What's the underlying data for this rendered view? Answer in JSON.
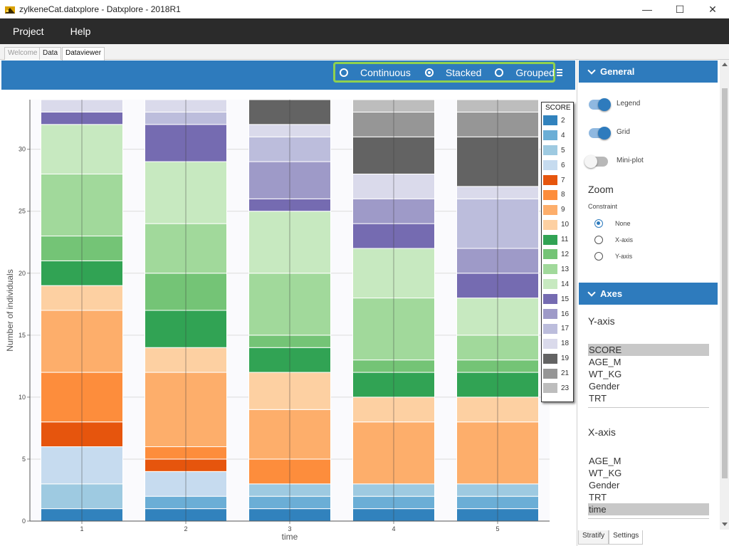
{
  "window": {
    "title": "zylkeneCat.datxplore - Datxplore - 2018R1",
    "controls": {
      "minimize": "—",
      "maximize": "☐",
      "close": "✕"
    }
  },
  "menu": {
    "items": [
      "Project",
      "Help"
    ]
  },
  "tabs": [
    {
      "label": "Welcome",
      "active": false
    },
    {
      "label": "Data",
      "active": false
    },
    {
      "label": "Dataviewer",
      "active": true
    }
  ],
  "toolbar": {
    "modes": [
      {
        "label": "Continuous",
        "selected": false
      },
      {
        "label": "Stacked",
        "selected": true
      },
      {
        "label": "Grouped",
        "selected": false
      }
    ],
    "menu_icon": "hamburger-menu-icon"
  },
  "chart_data": {
    "type": "bar",
    "stacked": true,
    "xlabel": "time",
    "ylabel": "Number of individuals",
    "categories": [
      "1",
      "2",
      "3",
      "4",
      "5"
    ],
    "ylim": [
      0,
      34
    ],
    "yticks": [
      0,
      5,
      10,
      15,
      20,
      25,
      30
    ],
    "grid": true,
    "legend_position": "right",
    "legend_title": "SCORE",
    "series": [
      {
        "name": "2",
        "color": "#3182bd",
        "values": [
          1,
          1,
          1,
          1,
          1
        ]
      },
      {
        "name": "4",
        "color": "#6baed6",
        "values": [
          0,
          1,
          1,
          1,
          1
        ]
      },
      {
        "name": "5",
        "color": "#9ecae1",
        "values": [
          2,
          0,
          1,
          1,
          1
        ]
      },
      {
        "name": "6",
        "color": "#c6dbef",
        "values": [
          3,
          2,
          0,
          0,
          0
        ]
      },
      {
        "name": "7",
        "color": "#e6550d",
        "values": [
          2,
          1,
          0,
          0,
          0
        ]
      },
      {
        "name": "8",
        "color": "#fd8d3c",
        "values": [
          4,
          1,
          2,
          0,
          0
        ]
      },
      {
        "name": "9",
        "color": "#fdae6b",
        "values": [
          5,
          6,
          4,
          5,
          5
        ]
      },
      {
        "name": "10",
        "color": "#fdd0a2",
        "values": [
          2,
          2,
          3,
          2,
          2
        ]
      },
      {
        "name": "11",
        "color": "#31a354",
        "values": [
          2,
          3,
          2,
          2,
          2
        ]
      },
      {
        "name": "12",
        "color": "#74c476",
        "values": [
          2,
          3,
          1,
          1,
          1
        ]
      },
      {
        "name": "13",
        "color": "#a1d99b",
        "values": [
          5,
          4,
          5,
          5,
          2
        ]
      },
      {
        "name": "14",
        "color": "#c7e9c0",
        "values": [
          4,
          5,
          5,
          4,
          3
        ]
      },
      {
        "name": "15",
        "color": "#756bb1",
        "values": [
          1,
          3,
          1,
          2,
          2
        ]
      },
      {
        "name": "16",
        "color": "#9e9ac8",
        "values": [
          0,
          0,
          3,
          2,
          2
        ]
      },
      {
        "name": "17",
        "color": "#bcbddc",
        "values": [
          0,
          1,
          2,
          0,
          4
        ]
      },
      {
        "name": "18",
        "color": "#dadaeb",
        "values": [
          1,
          1,
          1,
          2,
          1
        ]
      },
      {
        "name": "19",
        "color": "#636363",
        "values": [
          0,
          0,
          2,
          3,
          4
        ]
      },
      {
        "name": "21",
        "color": "#969696",
        "values": [
          0,
          0,
          0,
          2,
          2
        ]
      },
      {
        "name": "23",
        "color": "#bdbdbd",
        "values": [
          0,
          0,
          0,
          1,
          1
        ]
      }
    ]
  },
  "panel": {
    "general": {
      "title": "General",
      "toggles": [
        {
          "label": "Legend",
          "on": true
        },
        {
          "label": "Grid",
          "on": true
        },
        {
          "label": "Mini-plot",
          "on": false
        }
      ],
      "zoom_title": "Zoom",
      "constraint_label": "Constraint",
      "constraints": [
        {
          "label": "None",
          "selected": true
        },
        {
          "label": "X-axis",
          "selected": false
        },
        {
          "label": "Y-axis",
          "selected": false
        }
      ]
    },
    "axes": {
      "title": "Axes",
      "y_title": "Y-axis",
      "y_items": [
        {
          "label": "SCORE",
          "selected": true
        },
        {
          "label": "AGE_M",
          "selected": false
        },
        {
          "label": "WT_KG",
          "selected": false
        },
        {
          "label": "Gender",
          "selected": false
        },
        {
          "label": "TRT",
          "selected": false
        }
      ],
      "x_title": "X-axis",
      "x_items": [
        {
          "label": "AGE_M",
          "selected": false
        },
        {
          "label": "WT_KG",
          "selected": false
        },
        {
          "label": "Gender",
          "selected": false
        },
        {
          "label": "TRT",
          "selected": false
        },
        {
          "label": "time",
          "selected": true
        }
      ]
    },
    "bottom_tabs": [
      {
        "label": "Stratify",
        "active": false
      },
      {
        "label": "Settings",
        "active": true
      }
    ]
  }
}
